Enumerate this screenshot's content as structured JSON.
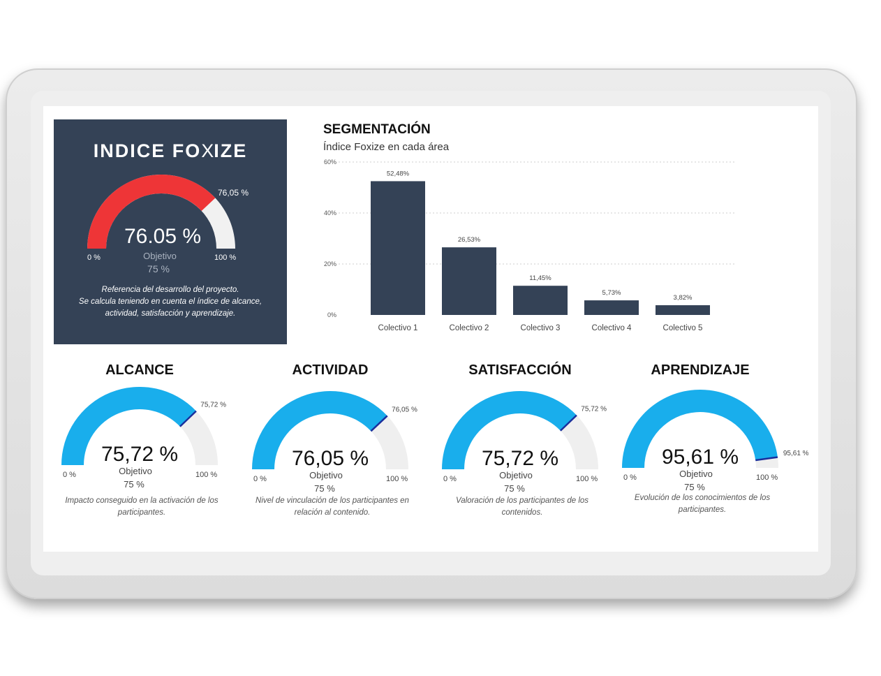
{
  "main_card": {
    "logo_left": "INDICE FO",
    "logo_x": "X",
    "logo_right": "IZE",
    "value": 76.05,
    "value_label": "76.05 %",
    "target_label": "Objetivo",
    "target_value": "75 %",
    "marker_label": "76,05 %",
    "min_label": "0 %",
    "max_label": "100 %",
    "desc_line1": "Referencia del desarrollo del proyecto.",
    "desc_line2": "Se calcula teniendo en cuenta el índice de alcance,",
    "desc_line3": "actividad, satisfacción y aprendizaje.",
    "colors": {
      "background": "#344256",
      "fill": "#ee3537",
      "track": "#f1f1f1"
    }
  },
  "segmentation": {
    "title": "SEGMENTACIÓN",
    "subtitle": "Índice Foxize en cada área"
  },
  "chart_data": {
    "type": "bar",
    "title": "SEGMENTACIÓN",
    "subtitle": "Índice Foxize en cada área",
    "categories": [
      "Colectivo 1",
      "Colectivo 2",
      "Colectivo 3",
      "Colectivo 4",
      "Colectivo 5"
    ],
    "values": [
      52.48,
      26.53,
      11.45,
      5.73,
      3.82
    ],
    "value_labels": [
      "52,48%",
      "26,53%",
      "11,45%",
      "5,73%",
      "3,82%"
    ],
    "ylim": [
      0,
      60
    ],
    "yticks": [
      0,
      20,
      40,
      60
    ],
    "ytick_labels": [
      "0%",
      "20%",
      "40%",
      "60%"
    ],
    "grid": true,
    "bar_color": "#344256"
  },
  "gauges": [
    {
      "title": "ALCANCE",
      "value": 75.72,
      "value_label": "75,72 %",
      "marker_label": "75,72 %",
      "target_label": "Objetivo",
      "target_value": "75 %",
      "min_label": "0 %",
      "max_label": "100 %",
      "desc_line1": "Impacto conseguido en la activación de los",
      "desc_line2": "participantes."
    },
    {
      "title": "ACTIVIDAD",
      "value": 76.05,
      "value_label": "76,05 %",
      "marker_label": "76,05 %",
      "target_label": "Objetivo",
      "target_value": "75 %",
      "min_label": "0 %",
      "max_label": "100 %",
      "desc_line1": "Nivel de vinculación de los participantes en",
      "desc_line2": "relación al contenido."
    },
    {
      "title": "SATISFACCIÓN",
      "value": 75.72,
      "value_label": "75,72 %",
      "marker_label": "75,72 %",
      "target_label": "Objetivo",
      "target_value": "75 %",
      "min_label": "0 %",
      "max_label": "100 %",
      "desc_line1": "Valoración de los participantes de los",
      "desc_line2": "contenidos."
    },
    {
      "title": "APRENDIZAJE",
      "value": 95.61,
      "value_label": "95,61 %",
      "marker_label": "95,61 %",
      "target_label": "Objetivo",
      "target_value": "75 %",
      "min_label": "0 %",
      "max_label": "100 %",
      "desc_line1": "Evolución de los conocimientos de los",
      "desc_line2": "participantes."
    }
  ],
  "gauge_colors": {
    "fill": "#19aeec",
    "track": "#efefef",
    "marker": "#1a2f9c"
  }
}
